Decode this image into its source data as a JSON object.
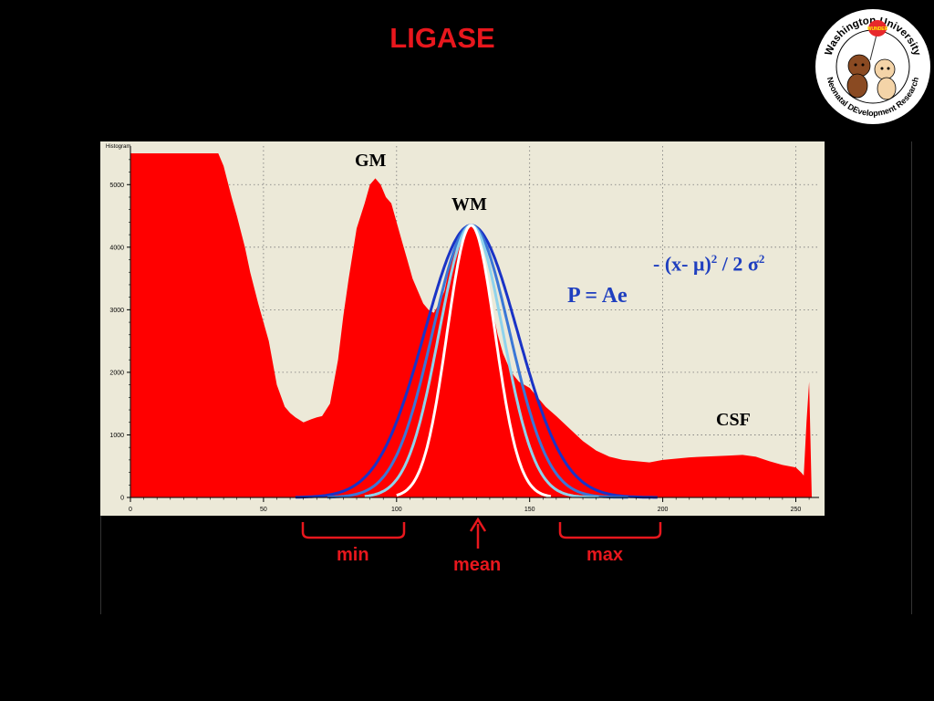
{
  "slide": {
    "title": "LIGASE"
  },
  "logo": {
    "arc_top": "Washington University",
    "arc_bottom": "Neonatal DEvelopment Research",
    "badge": "WUNDER"
  },
  "chart_data": {
    "type": "area",
    "title": "Histogram",
    "xlim": [
      0,
      256
    ],
    "ylim": [
      0,
      5500
    ],
    "xticks": [
      0,
      50,
      100,
      150,
      200,
      250
    ],
    "yticks": [
      0,
      1000,
      2000,
      3000,
      4000,
      5000
    ],
    "grid": true,
    "colors": {
      "histogram": "#ff0000",
      "panel": "#ece9d8",
      "blue_dark": "#1a33c6",
      "blue_mid": "#3b77d6",
      "blue_light": "#8fd3ec",
      "white": "#ffffff"
    },
    "histogram": {
      "x": [
        0,
        5,
        10,
        15,
        20,
        25,
        30,
        33,
        35,
        38,
        40,
        43,
        45,
        48,
        50,
        52,
        55,
        58,
        60,
        62,
        65,
        68,
        70,
        72,
        75,
        78,
        80,
        82,
        85,
        88,
        90,
        92,
        94,
        96,
        98,
        100,
        102,
        104,
        106,
        108,
        110,
        112,
        114,
        116,
        118,
        120,
        122,
        124,
        126,
        128,
        130,
        132,
        134,
        136,
        138,
        140,
        142,
        144,
        146,
        148,
        150,
        153,
        156,
        160,
        165,
        170,
        175,
        180,
        185,
        190,
        195,
        200,
        205,
        210,
        215,
        220,
        225,
        230,
        235,
        240,
        245,
        250,
        252,
        253,
        254,
        255,
        256
      ],
      "y": [
        5500,
        5500,
        5500,
        5500,
        5500,
        5500,
        5500,
        5500,
        5300,
        4800,
        4500,
        4000,
        3600,
        3100,
        2800,
        2500,
        1800,
        1450,
        1350,
        1280,
        1200,
        1250,
        1280,
        1300,
        1500,
        2200,
        2900,
        3500,
        4300,
        4700,
        5000,
        5100,
        5000,
        4800,
        4700,
        4400,
        4100,
        3800,
        3500,
        3300,
        3100,
        3000,
        2950,
        3100,
        3300,
        3700,
        4000,
        4200,
        4300,
        4350,
        4250,
        4000,
        3500,
        3000,
        2600,
        2300,
        2100,
        1950,
        1850,
        1800,
        1750,
        1600,
        1450,
        1300,
        1100,
        900,
        750,
        650,
        600,
        580,
        560,
        600,
        620,
        640,
        650,
        660,
        670,
        680,
        650,
        580,
        520,
        480,
        400,
        350,
        1200,
        1850,
        0
      ]
    },
    "gaussians": [
      {
        "color": "#1a33c6",
        "mean": 128,
        "sigma": 17.5,
        "peak": 4350,
        "x_range": [
          62,
          198
        ]
      },
      {
        "color": "#3b77d6",
        "mean": 128,
        "sigma": 14.5,
        "peak": 4350,
        "x_range": [
          74,
          187
        ]
      },
      {
        "color": "#8fd3ec",
        "mean": 128,
        "sigma": 12,
        "peak": 4350,
        "x_range": [
          88,
          176
        ]
      },
      {
        "color": "#ffffff",
        "mean": 128,
        "sigma": 9,
        "peak": 4350,
        "x_range": [
          100,
          158
        ]
      }
    ],
    "annotations": {
      "gm": "GM",
      "wm": "WM",
      "csf": "CSF"
    }
  },
  "equation": {
    "lhs": "P = Ae",
    "exponent_prefix": "- (x- ",
    "mu": "μ",
    "exp_mid": ")",
    "sup2a": "2",
    "exp_div": " / 2 ",
    "sigma": "σ",
    "sup2b": "2"
  },
  "below": {
    "min": "min",
    "mean": "mean",
    "max": "max"
  }
}
